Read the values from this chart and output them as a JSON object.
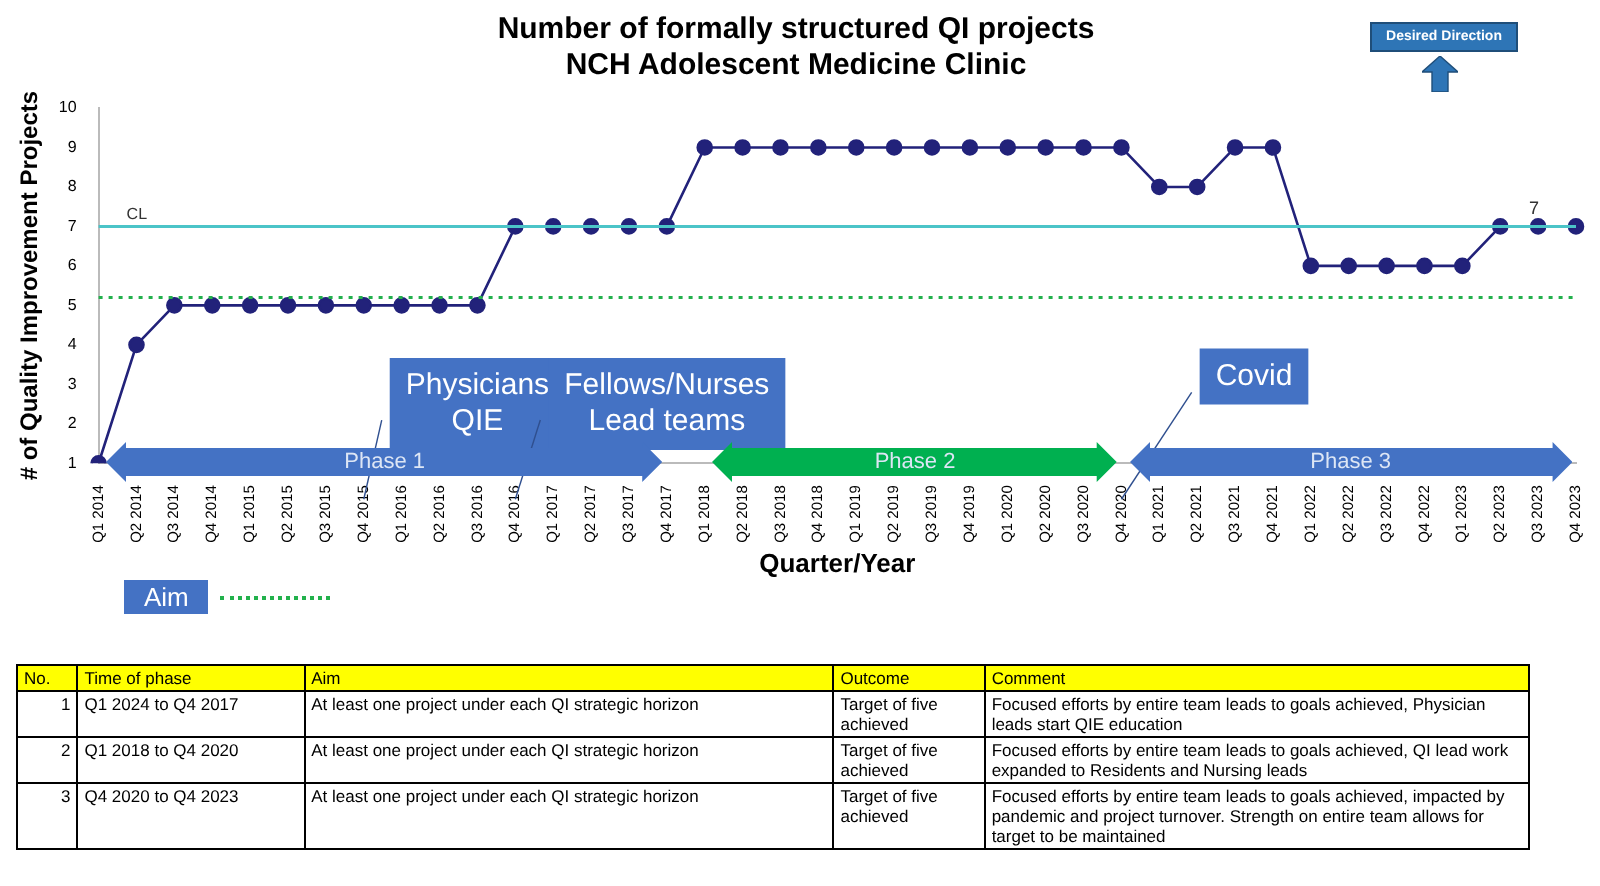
{
  "chart_data": {
    "type": "line",
    "title": "Number of formally structured QI projects",
    "subtitle": "NCH Adolescent Medicine Clinic",
    "xlabel": "Quarter/Year",
    "ylabel": "# of Quality Improvement Projects",
    "categories": [
      "Q1 2014",
      "Q2 2014",
      "Q3 2014",
      "Q4 2014",
      "Q1 2015",
      "Q2 2015",
      "Q3 2015",
      "Q4 2015",
      "Q1 2016",
      "Q2 2016",
      "Q3 2016",
      "Q4 2016",
      "Q1 2017",
      "Q2 2017",
      "Q3 2017",
      "Q4 2017",
      "Q1 2018",
      "Q2 2018",
      "Q3 2018",
      "Q4 2018",
      "Q1 2019",
      "Q2 2019",
      "Q3 2019",
      "Q4 2019",
      "Q1 2020",
      "Q2 2020",
      "Q3 2020",
      "Q4 2020",
      "Q1 2021",
      "Q2 2021",
      "Q3 2021",
      "Q4 2021",
      "Q1 2022",
      "Q2 2022",
      "Q3 2022",
      "Q4 2022",
      "Q1 2023",
      "Q2 2023",
      "Q3 2023",
      "Q4 2023"
    ],
    "series": [
      {
        "color": "#22227a",
        "values": [
          1,
          4,
          5,
          5,
          5,
          5,
          5,
          5,
          5,
          5,
          5,
          7,
          7,
          7,
          7,
          7,
          9,
          9,
          9,
          9,
          9,
          9,
          9,
          9,
          9,
          9,
          9,
          9,
          8,
          8,
          9,
          9,
          6,
          6,
          6,
          6,
          6,
          7,
          7,
          7
        ],
        "value_labels": [
          null,
          null,
          null,
          null,
          null,
          null,
          null,
          null,
          null,
          null,
          null,
          null,
          null,
          null,
          null,
          null,
          null,
          null,
          null,
          null,
          null,
          null,
          null,
          null,
          null,
          null,
          null,
          null,
          null,
          null,
          null,
          null,
          null,
          null,
          null,
          null,
          null,
          null,
          "7",
          null
        ]
      }
    ],
    "ylim": [
      1,
      10
    ],
    "yticks": [
      1,
      2,
      3,
      4,
      5,
      6,
      7,
      8,
      9,
      10
    ],
    "grid": false,
    "legend": "bottom left",
    "marker": "circle",
    "line_style": "solid",
    "ref_lines": [
      {
        "axis": "y",
        "value": 7,
        "label": "CL",
        "color": "#4bc4c8",
        "line_style": "solid"
      },
      {
        "axis": "y",
        "value": 5.2,
        "label": "Aim",
        "color": "#22b14c",
        "line_style": "dotted"
      }
    ],
    "annotations": [
      "Physicians QIE",
      "Fellows/Nurses Lead teams",
      "Covid",
      "Phase 1",
      "Phase 2",
      "Phase 3",
      "Desired Direction",
      "No.",
      "Time of phase",
      "Aim",
      "Outcome",
      "Comment",
      "1",
      "Q1 2024 to Q4 2017",
      "At least one project under each QI strategic horizon",
      "Target of five achieved",
      "Focused efforts by entire team leads to goals achieved, Physician leads start QIE education",
      "2",
      "Q1 2018 to Q4 2020",
      "At least one project under each QI strategic horizon",
      "Target of five achieved",
      "Focused efforts by entire team leads to goals achieved, QI lead work expanded to Residents and Nursing leads",
      "3",
      "Q4 2020 to Q4 2023",
      "At least one project under each QI strategic horizon",
      "Target of five achieved",
      "Focused efforts by entire team leads to goals achieved, impacted by pandemic and project turnover.  Strength on entire team allows for target to be maintained"
    ]
  }
}
